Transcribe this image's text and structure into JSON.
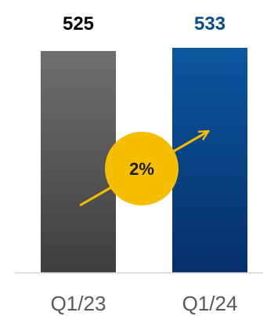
{
  "chart_data": {
    "type": "bar",
    "categories": [
      "Q1/23",
      "Q1/24"
    ],
    "values": [
      525,
      533
    ],
    "value_labels": [
      "525",
      "533"
    ],
    "bar_colors": [
      "#5a5a5a",
      "#0a4a8e"
    ],
    "value_label_colors": [
      "#000000",
      "#0a4a8e"
    ],
    "growth_badge": {
      "text": "2%",
      "color": "#f6be00"
    },
    "title": "",
    "xlabel": "",
    "ylabel": "",
    "grid": false,
    "legend": "none"
  }
}
